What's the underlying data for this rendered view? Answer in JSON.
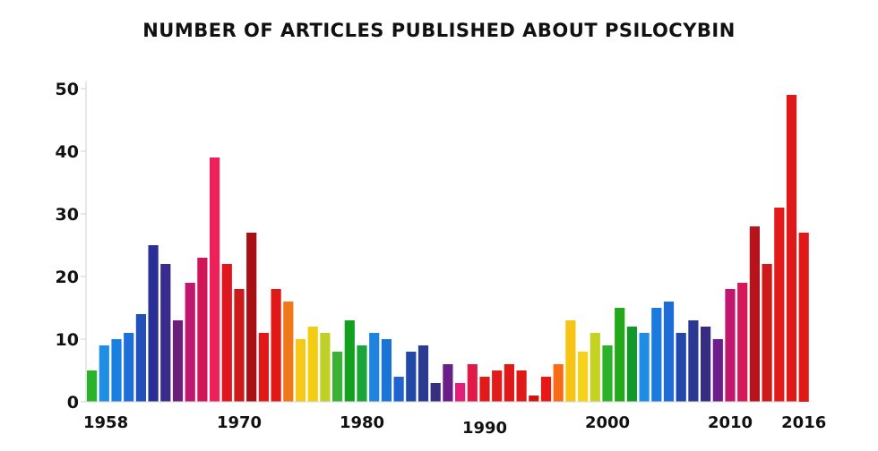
{
  "chart_data": {
    "type": "bar",
    "title": "NUMBER OF ARTICLES PUBLISHED ABOUT PSILOCYBIN",
    "xlabel": "",
    "ylabel": "",
    "ylim": [
      0,
      50
    ],
    "grid": false,
    "x": [
      1958,
      1959,
      1960,
      1961,
      1962,
      1963,
      1964,
      1965,
      1966,
      1967,
      1968,
      1969,
      1970,
      1971,
      1972,
      1973,
      1974,
      1975,
      1976,
      1977,
      1978,
      1979,
      1980,
      1981,
      1982,
      1983,
      1984,
      1985,
      1986,
      1987,
      1988,
      1989,
      1990,
      1991,
      1992,
      1993,
      1994,
      1995,
      1996,
      1997,
      1998,
      1999,
      2000,
      2001,
      2002,
      2003,
      2004,
      2005,
      2006,
      2007,
      2008,
      2009,
      2010,
      2011,
      2012,
      2013,
      2014,
      2015,
      2016
    ],
    "values": [
      5,
      9,
      10,
      11,
      14,
      25,
      22,
      13,
      19,
      23,
      39,
      22,
      18,
      27,
      11,
      18,
      16,
      10,
      12,
      11,
      8,
      13,
      9,
      11,
      10,
      4,
      8,
      9,
      3,
      6,
      3,
      6,
      4,
      5,
      6,
      5,
      1,
      4,
      6,
      13,
      8,
      11,
      9,
      15,
      12,
      11,
      15,
      16,
      11,
      13,
      12,
      10,
      18,
      19,
      28,
      22,
      31,
      49,
      27
    ],
    "colors": [
      "#2bb22b",
      "#1f8fe6",
      "#1a7fe0",
      "#1f6fd8",
      "#2050b8",
      "#2a2f96",
      "#3a2c8c",
      "#6a1f7a",
      "#c01670",
      "#d01558",
      "#ee1f5a",
      "#e0151d",
      "#cc1a1a",
      "#a80f14",
      "#e01818",
      "#e01818",
      "#f07818",
      "#f6c81a",
      "#f4cc12",
      "#c0d026",
      "#3ab234",
      "#13a01f",
      "#18a638",
      "#1e84e0",
      "#1a74d6",
      "#1f62d0",
      "#2248a8",
      "#2b3b92",
      "#352f80",
      "#6a1f88",
      "#e0207a",
      "#e01a48",
      "#e01a1a",
      "#e11a1a",
      "#e01818",
      "#e01818",
      "#cf1414",
      "#e81818",
      "#f76a16",
      "#f5c414",
      "#f6d21a",
      "#c4d222",
      "#2ab22a",
      "#22a818",
      "#13982a",
      "#1f8ce6",
      "#1a7ade",
      "#1f6cd8",
      "#2246aa",
      "#2a3892",
      "#362c82",
      "#6c1f8a",
      "#c0166e",
      "#d41858",
      "#b8121c",
      "#cc1a1a",
      "#e41a1a",
      "#e01818",
      "#e01818"
    ],
    "yticks": [
      0,
      10,
      20,
      30,
      40,
      50
    ],
    "xtick_labels": [
      {
        "year": 1958,
        "label": "1958"
      },
      {
        "year": 1970,
        "label": "1970"
      },
      {
        "year": 1980,
        "label": "1980"
      },
      {
        "year": 1990,
        "label": "1990"
      },
      {
        "year": 2000,
        "label": "2000"
      },
      {
        "year": 2010,
        "label": "2010"
      },
      {
        "year": 2016,
        "label": "2016"
      }
    ]
  }
}
